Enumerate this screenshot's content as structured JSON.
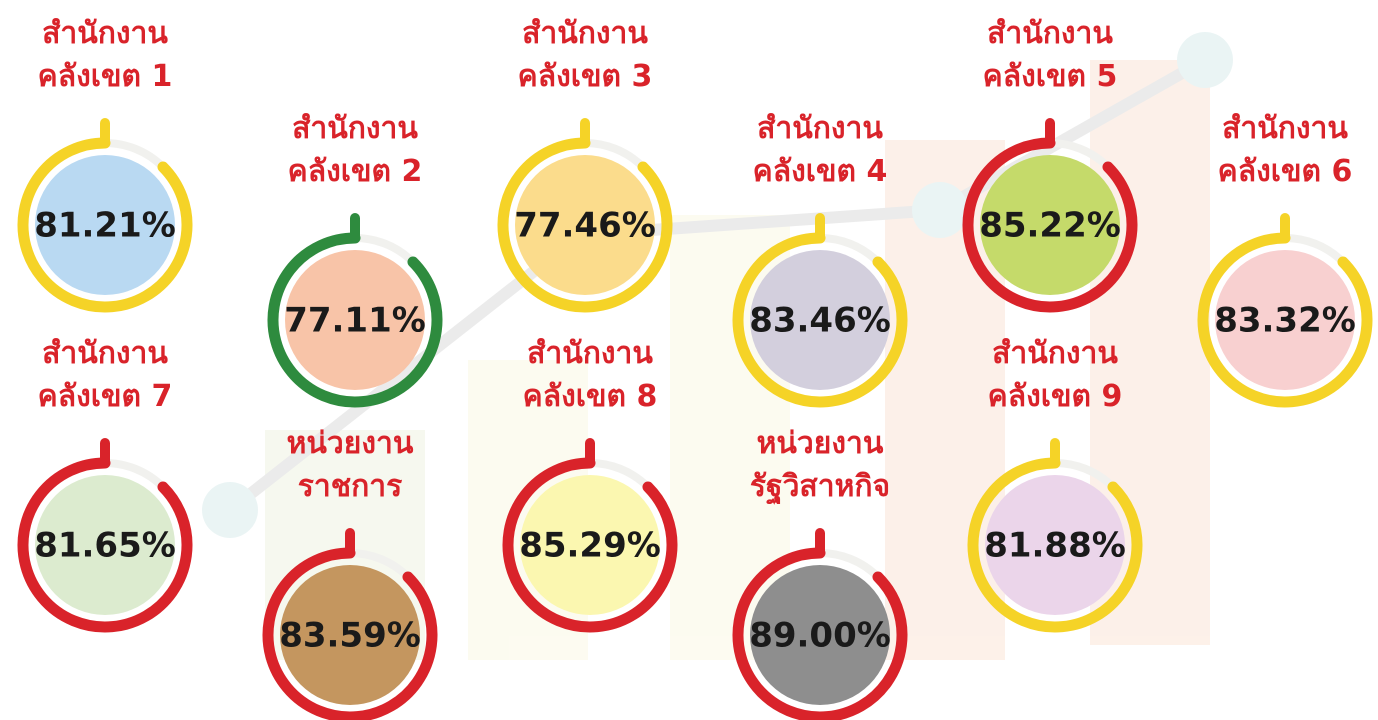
{
  "items": [
    {
      "label": [
        "สำนักงาน",
        "คลังเขต 1"
      ],
      "value": "81.21%",
      "ring_color": "#f5d327",
      "fill_color": "#b9d9f2"
    },
    {
      "label": [
        "สำนักงาน",
        "คลังเขต 2"
      ],
      "value": "77.11%",
      "ring_color": "#2e8b3e",
      "fill_color": "#f8c4a8"
    },
    {
      "label": [
        "สำนักงาน",
        "คลังเขต 3"
      ],
      "value": "77.46%",
      "ring_color": "#f5d327",
      "fill_color": "#fbdc8c"
    },
    {
      "label": [
        "สำนักงาน",
        "คลังเขต 4"
      ],
      "value": "83.46%",
      "ring_color": "#f5d327",
      "fill_color": "#d3cfdd"
    },
    {
      "label": [
        "สำนักงาน",
        "คลังเขต 5"
      ],
      "value": "85.22%",
      "ring_color": "#d9232a",
      "fill_color": "#c5da6a"
    },
    {
      "label": [
        "สำนักงาน",
        "คลังเขต 6"
      ],
      "value": "83.32%",
      "ring_color": "#f5d327",
      "fill_color": "#f8d0d0"
    },
    {
      "label": [
        "สำนักงาน",
        "คลังเขต 7"
      ],
      "value": "81.65%",
      "ring_color": "#d9232a",
      "fill_color": "#dcebcf"
    },
    {
      "label": [
        "หน่วยงาน",
        "ราชการ"
      ],
      "value": "83.59%",
      "ring_color": "#d9232a",
      "fill_color": "#c4965f"
    },
    {
      "label": [
        "สำนักงาน",
        "คลังเขต 8"
      ],
      "value": "85.29%",
      "ring_color": "#d9232a",
      "fill_color": "#fbf7b0"
    },
    {
      "label": [
        "หน่วยงาน",
        "รัฐวิสาหกิจ"
      ],
      "value": "89.00%",
      "ring_color": "#d9232a",
      "fill_color": "#8e8e8e"
    },
    {
      "label": [
        "สำนักงาน",
        "คลังเขต 9"
      ],
      "value": "81.88%",
      "ring_color": "#f5d327",
      "fill_color": "#ebd5ea"
    }
  ]
}
